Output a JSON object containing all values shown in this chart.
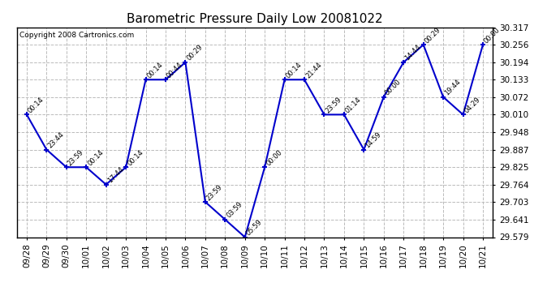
{
  "title": "Barometric Pressure Daily Low 20081022",
  "copyright": "Copyright 2008 Cartronics.com",
  "x_labels": [
    "09/28",
    "09/29",
    "09/30",
    "10/01",
    "10/02",
    "10/03",
    "10/04",
    "10/05",
    "10/06",
    "10/07",
    "10/08",
    "10/09",
    "10/10",
    "10/11",
    "10/12",
    "10/13",
    "10/14",
    "10/15",
    "10/16",
    "10/17",
    "10/18",
    "10/19",
    "10/20",
    "10/21"
  ],
  "y_values": [
    30.01,
    29.887,
    29.825,
    29.825,
    29.764,
    29.825,
    30.133,
    30.133,
    30.194,
    29.703,
    29.641,
    29.579,
    29.825,
    30.133,
    30.133,
    30.01,
    30.01,
    29.887,
    30.072,
    30.194,
    30.256,
    30.072,
    30.01,
    30.256
  ],
  "point_labels": [
    "00:14",
    "23:44",
    "23:59",
    "00:14",
    "17:44",
    "00:14",
    "00:14",
    "00:44",
    "00:29",
    "23:59",
    "03:59",
    "05:59",
    "00:00",
    "00:14",
    "21:44",
    "23:59",
    "01:14",
    "14:59",
    "00:00",
    "14:44",
    "00:29",
    "19:44",
    "04:29",
    "00:00"
  ],
  "y_ticks": [
    29.579,
    29.641,
    29.703,
    29.764,
    29.825,
    29.887,
    29.948,
    30.01,
    30.072,
    30.133,
    30.194,
    30.256,
    30.317
  ],
  "y_min": 29.579,
  "y_max": 30.317,
  "line_color": "#0000cc",
  "marker_color": "#0000cc",
  "bg_color": "#ffffff",
  "grid_color": "#bbbbbb",
  "title_fontsize": 11,
  "label_fontsize": 6.0,
  "tick_fontsize": 7.5,
  "copyright_fontsize": 6.5
}
